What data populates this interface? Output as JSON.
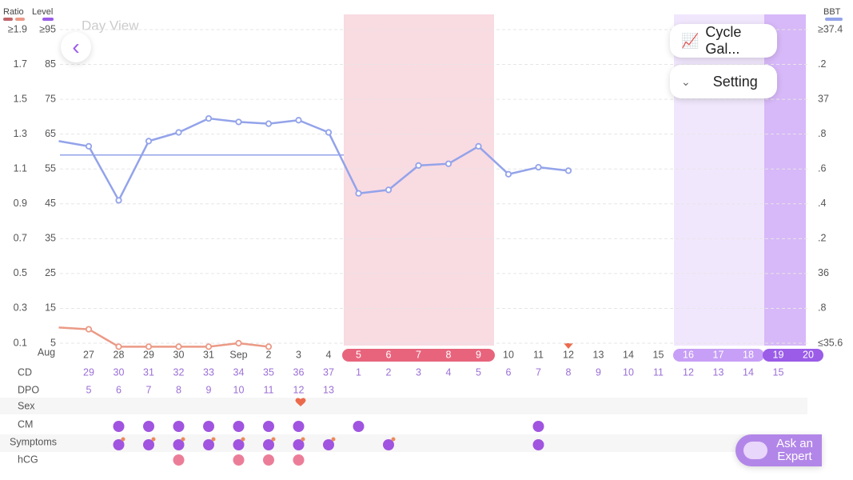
{
  "header": {
    "title": "Day View"
  },
  "buttons": {
    "cycle": "Cycle Gal...",
    "setting": "Setting",
    "expert": "Ask an Expert"
  },
  "chart_data": {
    "type": "line",
    "level_axis_label": "Level",
    "month_label": "Aug",
    "categories": [
      null,
      "27",
      "28",
      "29",
      "30",
      "31",
      "Sep",
      "2",
      "3",
      "4",
      "5",
      "6",
      "7",
      "8",
      "9",
      "10",
      "11",
      "12",
      "13",
      "14",
      "15",
      "16",
      "17",
      "18",
      "19",
      "20"
    ],
    "series": [
      {
        "name": "Ratio",
        "color": "#eb9a86",
        "values": [
          0.19,
          0.18,
          0.08,
          0.08,
          0.08,
          0.08,
          0.1,
          0.08,
          null,
          null,
          null,
          null,
          null,
          null,
          null,
          null,
          null,
          null,
          null,
          null,
          null,
          null,
          null,
          null,
          null,
          null
        ]
      },
      {
        "name": "BBT",
        "color": "#93a3ea",
        "axis": "y2",
        "values": [
          36.76,
          36.73,
          36.42,
          36.76,
          36.81,
          36.89,
          36.87,
          36.86,
          36.88,
          36.81,
          36.46,
          36.48,
          36.62,
          36.63,
          36.73,
          36.57,
          36.61,
          36.59,
          null,
          null,
          null,
          null,
          null,
          null,
          null,
          null
        ]
      }
    ],
    "coverline": 36.68,
    "ylim": [
      0.1,
      1.9
    ],
    "yticks": [
      {
        "value": 1.9,
        "label": "≥1.9"
      },
      1.7,
      1.5,
      1.3,
      1.1,
      0.9,
      0.7,
      0.5,
      0.3,
      0.1
    ],
    "level_lim": [
      5,
      95
    ],
    "level_ticks": [
      {
        "value": 95,
        "label": "≥95"
      },
      85,
      75,
      65,
      55,
      45,
      35,
      25,
      15,
      5
    ],
    "y2lim": [
      35.6,
      37.4
    ],
    "y2ticks": [
      {
        "value": 37.4,
        "label": "≥37.4"
      },
      {
        "value": 37.2,
        "label": ".2"
      },
      37,
      {
        "value": 36.8,
        "label": ".8"
      },
      {
        "value": 36.6,
        "label": ".6"
      },
      {
        "value": 36.4,
        "label": ".4"
      },
      {
        "value": 36.2,
        "label": ".2"
      },
      36,
      {
        "value": 35.8,
        "label": ".8"
      },
      {
        "value": 35.6,
        "label": "≤35.6"
      }
    ],
    "grid": true,
    "rows": {
      "cd_label": "CD",
      "cd": [
        null,
        29,
        30,
        31,
        32,
        33,
        34,
        35,
        36,
        37,
        1,
        2,
        3,
        4,
        5,
        6,
        7,
        8,
        9,
        10,
        11,
        12,
        13,
        14,
        15,
        null
      ],
      "dpo_label": "DPO",
      "dpo": [
        null,
        5,
        6,
        7,
        8,
        9,
        10,
        11,
        12,
        13,
        null,
        null,
        null,
        null,
        null,
        null,
        null,
        null,
        null,
        null,
        null,
        null,
        null,
        null,
        null,
        null
      ],
      "sex_label": "Sex",
      "cm_label": "CM",
      "symptoms_label": "Symptoms",
      "hcg_label": "hCG"
    }
  }
}
